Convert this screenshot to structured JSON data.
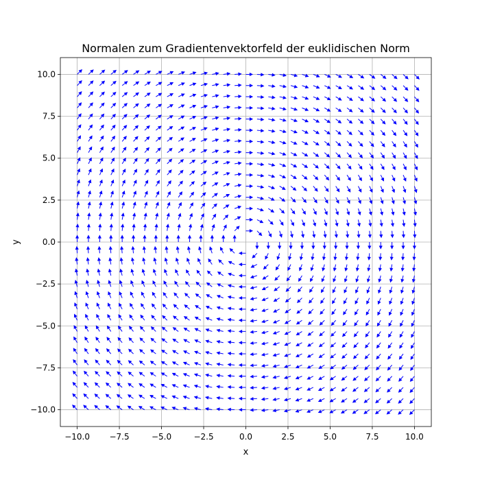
{
  "chart_data": {
    "type": "quiver",
    "title": "Normalen zum Gradientenvektorfeld der euklidischen Norm",
    "xlabel": "x",
    "ylabel": "y",
    "xlim": [
      -11,
      11
    ],
    "ylim": [
      -11,
      11
    ],
    "xticks": [
      -10.0,
      -7.5,
      -5.0,
      -2.5,
      0.0,
      2.5,
      5.0,
      7.5,
      10.0
    ],
    "yticks": [
      -10.0,
      -7.5,
      -5.0,
      -2.5,
      0.0,
      2.5,
      5.0,
      7.5,
      10.0
    ],
    "xtick_labels": [
      "−10.0",
      "−7.5",
      "−5.0",
      "−2.5",
      "0.0",
      "2.5",
      "5.0",
      "7.5",
      "10.0"
    ],
    "ytick_labels": [
      "−10.0",
      "−7.5",
      "−5.0",
      "−2.5",
      "0.0",
      "2.5",
      "5.0",
      "7.5",
      "10.0"
    ],
    "grid": true,
    "field": {
      "x_range": [
        -10,
        10
      ],
      "y_range": [
        -10,
        10
      ],
      "samples_per_axis": 31,
      "vector": "(y, -x) / sqrt(x^2 + y^2)",
      "color": "#0000ff"
    }
  }
}
